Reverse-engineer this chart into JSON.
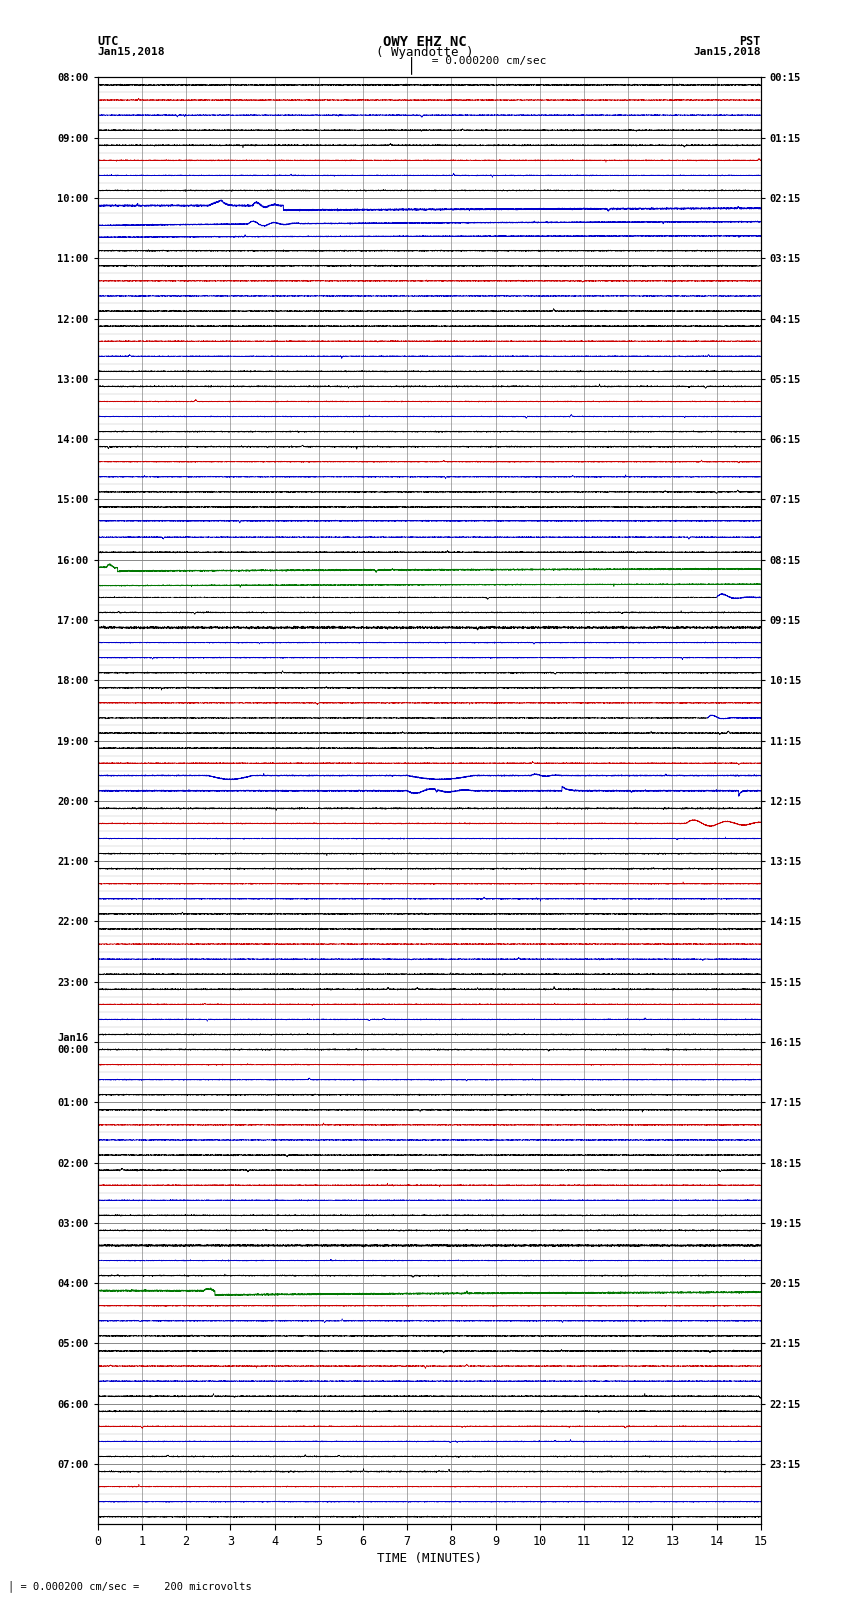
{
  "title_line1": "OWY EHZ NC",
  "title_line2": "( Wyandotte )",
  "scale_label": "I = 0.000200 cm/sec",
  "left_label_line1": "UTC",
  "left_label_line2": "Jan15,2018",
  "right_label_line1": "PST",
  "right_label_line2": "Jan15,2018",
  "bottom_label": "TIME (MINUTES)",
  "footer_label": "= 0.000200 cm/sec =    200 microvolts",
  "xlim": [
    0,
    15
  ],
  "bg_color": "#ffffff",
  "trace_color_black": "#000000",
  "trace_color_blue": "#0000cc",
  "trace_color_red": "#cc0000",
  "trace_color_green": "#007700",
  "trace_color_darkblue": "#000080",
  "grid_color_major": "#888888",
  "grid_color_minor": "#bbbbbb",
  "num_rows": 96,
  "utc_labels": [
    "08:00",
    "09:00",
    "10:00",
    "11:00",
    "12:00",
    "13:00",
    "14:00",
    "15:00",
    "16:00",
    "17:00",
    "18:00",
    "19:00",
    "20:00",
    "21:00",
    "22:00",
    "23:00",
    "Jan16\n00:00",
    "01:00",
    "02:00",
    "03:00",
    "04:00",
    "05:00",
    "06:00",
    "07:00"
  ],
  "pst_labels": [
    "00:15",
    "01:15",
    "02:15",
    "03:15",
    "04:15",
    "05:15",
    "06:15",
    "07:15",
    "08:15",
    "09:15",
    "10:15",
    "11:15",
    "12:15",
    "13:15",
    "14:15",
    "15:15",
    "16:15",
    "17:15",
    "18:15",
    "19:15",
    "20:15",
    "21:15",
    "22:15",
    "23:15"
  ]
}
